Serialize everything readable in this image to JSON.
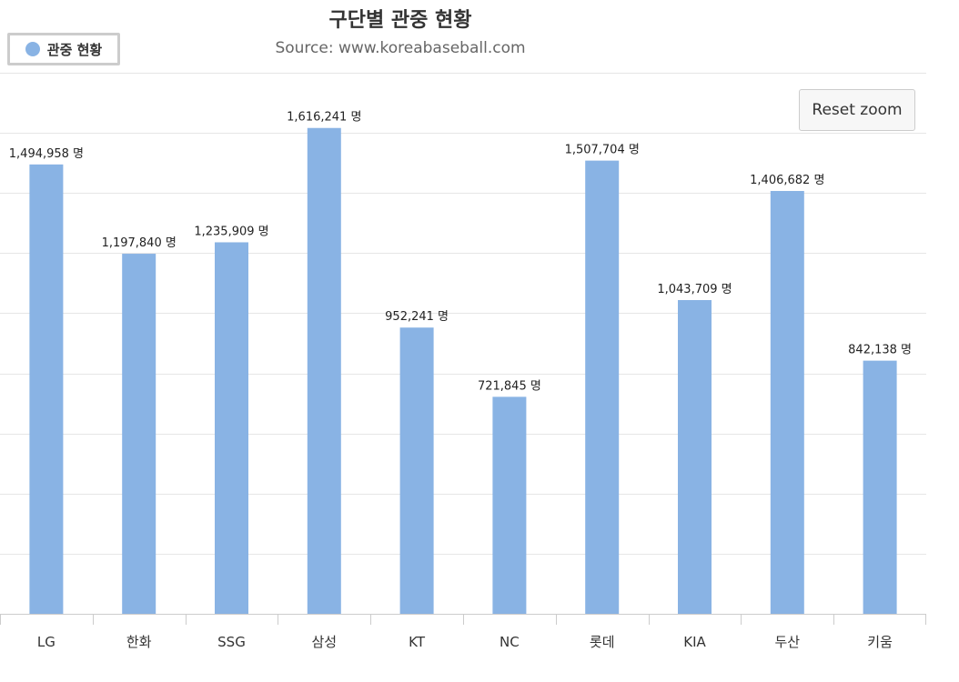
{
  "chart_data": {
    "type": "bar",
    "title": "구단별 관중 현황",
    "subtitle": "Source: www.koreabaseball.com",
    "series": [
      {
        "name": "관중 현황",
        "color": "#89b3e4",
        "values": [
          1494958,
          1197840,
          1235909,
          1616241,
          952241,
          721845,
          1507704,
          1043709,
          1406682,
          842138
        ]
      }
    ],
    "categories": [
      "LG",
      "한화",
      "SSG",
      "삼성",
      "KT",
      "NC",
      "롯데",
      "KIA",
      "두산",
      "키움"
    ],
    "data_labels": [
      "1,494,958 명",
      "1,197,840 명",
      "1,235,909 명",
      "1,616,241 명",
      "952,241 명",
      "721,845 명",
      "1,507,704 명",
      "1,043,709 명",
      "1,406,682 명",
      "842,138 명"
    ],
    "ylim": [
      0,
      1800000
    ],
    "y_tick_step": 200000,
    "grid": true,
    "legend": "top-left",
    "xlabel": "",
    "ylabel": ""
  },
  "controls": {
    "reset_zoom_label": "Reset zoom"
  }
}
